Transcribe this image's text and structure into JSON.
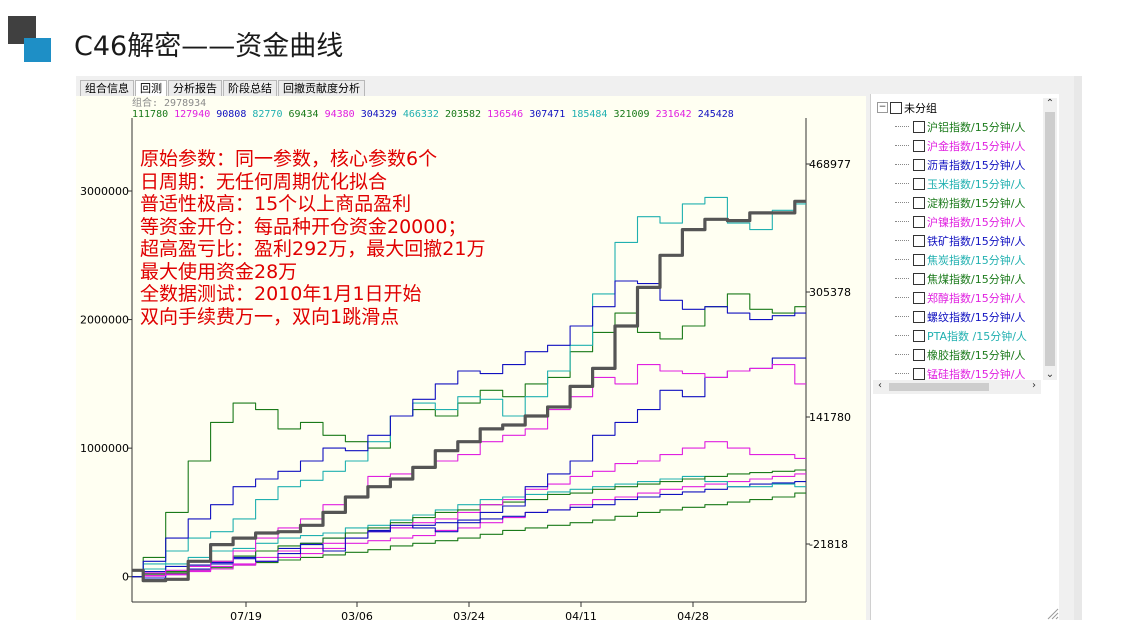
{
  "slide": {
    "title": "C46解密——资金曲线",
    "logo_colors": {
      "dark": "#404040",
      "accent": "#1e8fc6"
    }
  },
  "tabs": [
    {
      "label": "组合信息",
      "active": false
    },
    {
      "label": "回测",
      "active": true
    },
    {
      "label": "分析报告",
      "active": false
    },
    {
      "label": "阶段总结",
      "active": false
    },
    {
      "label": "回撤贡献度分析",
      "active": false
    }
  ],
  "legend": {
    "label": "组合: 2978934",
    "values": [
      {
        "text": "111780",
        "color": "#1a7a1a"
      },
      {
        "text": "127940",
        "color": "#e020e0"
      },
      {
        "text": "90808",
        "color": "#1010c0"
      },
      {
        "text": "82770",
        "color": "#20b0b0"
      },
      {
        "text": "69434",
        "color": "#1a7a1a"
      },
      {
        "text": "94380",
        "color": "#e020e0"
      },
      {
        "text": "304329",
        "color": "#1010c0"
      },
      {
        "text": "466332",
        "color": "#20b0b0"
      },
      {
        "text": "203582",
        "color": "#1a7a1a"
      },
      {
        "text": "136546",
        "color": "#e020e0"
      },
      {
        "text": "307471",
        "color": "#1010c0"
      },
      {
        "text": "185484",
        "color": "#20b0b0"
      },
      {
        "text": "321009",
        "color": "#1a7a1a"
      },
      {
        "text": "231642",
        "color": "#e020e0"
      },
      {
        "text": "245428",
        "color": "#1010c0"
      }
    ]
  },
  "annotation": [
    "原始参数：同一参数，核心参数6个",
    "日周期：无任何周期优化拟合",
    "普适性极高：15个以上商品盈利",
    "等资金开仓：每品种开仓资金20000；",
    "超高盈亏比：盈利292万，最大回撤21万",
    "最大使用资金28万",
    "全数据测试：2010年1月1日开始",
    "双向手续费万一，双向1跳滑点"
  ],
  "tree": {
    "root": "未分组",
    "items": [
      {
        "label": "沪铝指数/15分钟/人",
        "color": "#1a7a1a"
      },
      {
        "label": "沪金指数/15分钟/人",
        "color": "#e020e0"
      },
      {
        "label": "沥青指数/15分钟/人",
        "color": "#1010c0"
      },
      {
        "label": "玉米指数/15分钟/人",
        "color": "#20b0b0"
      },
      {
        "label": "淀粉指数/15分钟/人",
        "color": "#1a7a1a"
      },
      {
        "label": "沪镍指数/15分钟/人",
        "color": "#e020e0"
      },
      {
        "label": "铁矿指数/15分钟/人",
        "color": "#1010c0"
      },
      {
        "label": "焦炭指数/15分钟/人",
        "color": "#20b0b0"
      },
      {
        "label": "焦煤指数/15分钟/人",
        "color": "#1a7a1a"
      },
      {
        "label": "郑醇指数/15分钟/人",
        "color": "#e020e0"
      },
      {
        "label": "螺纹指数/15分钟/人",
        "color": "#1010c0"
      },
      {
        "label": "PTA指数 /15分钟/人",
        "color": "#20b0b0"
      },
      {
        "label": "橡胶指数/15分钟/人",
        "color": "#1a7a1a"
      },
      {
        "label": "锰硅指数/15分钟/人",
        "color": "#e020e0"
      }
    ]
  },
  "chart_data": {
    "type": "line",
    "left_axis": {
      "ticks": [
        "3000000",
        "2000000",
        "1000000",
        "0"
      ],
      "values": [
        3000000,
        2000000,
        1000000,
        0
      ],
      "range": [
        -150000,
        3350000
      ]
    },
    "right_axis": {
      "ticks": [
        "468977",
        "305378",
        "141780",
        "-21818"
      ]
    },
    "x_ticks": [
      "07/19",
      "03/06",
      "03/24",
      "04/11",
      "04/28"
    ],
    "series": [
      {
        "color": "#555555",
        "width": 3.2,
        "values": [
          50000,
          -30000,
          -20000,
          120000,
          250000,
          300000,
          340000,
          350000,
          400000,
          500000,
          620000,
          700000,
          760000,
          850000,
          980000,
          1050000,
          1150000,
          1180000,
          1250000,
          1320000,
          1480000,
          1620000,
          1950000,
          2250000,
          2500000,
          2700000,
          2780000,
          2770000,
          2830000,
          2830000,
          2920000
        ]
      },
      {
        "color": "#1010c0",
        "width": 1.1,
        "values": [
          0,
          120000,
          300000,
          450000,
          560000,
          700000,
          760000,
          820000,
          900000,
          1000000,
          980000,
          1100000,
          1250000,
          1380000,
          1500000,
          1600000,
          1580000,
          1650000,
          1750000,
          1800000,
          1950000,
          2100000,
          2300000,
          2280000,
          2150000,
          2080000,
          2100000,
          2050000,
          2000000,
          2030000,
          2050000
        ]
      },
      {
        "color": "#20b0b0",
        "width": 1.1,
        "values": [
          50000,
          100000,
          200000,
          300000,
          350000,
          450000,
          600000,
          700000,
          750000,
          820000,
          900000,
          1050000,
          1250000,
          1350000,
          1300000,
          1400000,
          1380000,
          1250000,
          1400000,
          1600000,
          1800000,
          2200000,
          2600000,
          2800000,
          2750000,
          2900000,
          2950000,
          2750000,
          2700000,
          2850000,
          2900000
        ]
      },
      {
        "color": "#1a7a1a",
        "width": 1.1,
        "values": [
          0,
          150000,
          500000,
          900000,
          1200000,
          1350000,
          1300000,
          1150000,
          1200000,
          1100000,
          1050000,
          1000000,
          1250000,
          1300000,
          1250000,
          1350000,
          1450000,
          1400000,
          1500000,
          1550000,
          1750000,
          1900000,
          2050000,
          1900000,
          1850000,
          1950000,
          2100000,
          2200000,
          2080000,
          2050000,
          2100000
        ]
      },
      {
        "color": "#e020e0",
        "width": 1.1,
        "values": [
          0,
          30000,
          50000,
          80000,
          120000,
          200000,
          300000,
          380000,
          450000,
          560000,
          620000,
          780000,
          800000,
          850000,
          900000,
          950000,
          1050000,
          1100000,
          1150000,
          1300000,
          1400000,
          1550000,
          1500000,
          1650000,
          1600000,
          1580000,
          1550000,
          1600000,
          1620000,
          1650000,
          1500000
        ]
      },
      {
        "color": "#1010c0",
        "width": 1.1,
        "values": [
          0,
          40000,
          80000,
          90000,
          110000,
          150000,
          120000,
          180000,
          250000,
          200000,
          300000,
          350000,
          400000,
          380000,
          350000,
          420000,
          500000,
          550000,
          700000,
          800000,
          900000,
          1100000,
          1200000,
          1300000,
          1450000,
          1400000,
          1550000,
          1600000,
          1620000,
          1700000,
          1700000
        ]
      },
      {
        "color": "#e020e0",
        "width": 1.1,
        "values": [
          0,
          10000,
          20000,
          50000,
          80000,
          100000,
          150000,
          200000,
          220000,
          260000,
          300000,
          350000,
          380000,
          420000,
          450000,
          500000,
          560000,
          600000,
          680000,
          720000,
          780000,
          820000,
          880000,
          900000,
          950000,
          1000000,
          1050000,
          1000000,
          950000,
          950000,
          920000
        ]
      },
      {
        "color": "#1a7a1a",
        "width": 1.1,
        "values": [
          0,
          20000,
          40000,
          80000,
          120000,
          160000,
          200000,
          240000,
          260000,
          300000,
          340000,
          380000,
          420000,
          460000,
          500000,
          520000,
          560000,
          580000,
          600000,
          640000,
          650000,
          680000,
          700000,
          720000,
          740000,
          760000,
          780000,
          800000,
          810000,
          820000,
          830000
        ]
      },
      {
        "color": "#20b0b0",
        "width": 1.1,
        "values": [
          0,
          60000,
          100000,
          150000,
          200000,
          220000,
          260000,
          300000,
          320000,
          340000,
          380000,
          400000,
          440000,
          480000,
          520000,
          560000,
          600000,
          620000,
          640000,
          660000,
          680000,
          700000,
          720000,
          740000,
          760000,
          780000,
          740000,
          700000,
          700000,
          720000,
          700000
        ]
      },
      {
        "color": "#1010c0",
        "width": 1.1,
        "values": [
          0,
          -10000,
          20000,
          60000,
          100000,
          140000,
          200000,
          220000,
          260000,
          300000,
          340000,
          360000,
          380000,
          400000,
          420000,
          440000,
          450000,
          470000,
          500000,
          520000,
          540000,
          560000,
          600000,
          620000,
          640000,
          660000,
          680000,
          700000,
          720000,
          730000,
          740000
        ]
      },
      {
        "color": "#e020e0",
        "width": 1.1,
        "values": [
          0,
          5000,
          15000,
          40000,
          60000,
          90000,
          120000,
          150000,
          180000,
          220000,
          260000,
          280000,
          300000,
          320000,
          360000,
          380000,
          420000,
          460000,
          500000,
          520000,
          560000,
          600000,
          620000,
          650000,
          680000,
          700000,
          720000,
          740000,
          760000,
          780000,
          800000
        ]
      },
      {
        "color": "#1a7a1a",
        "width": 1.1,
        "values": [
          0,
          10000,
          30000,
          50000,
          70000,
          90000,
          110000,
          130000,
          150000,
          170000,
          190000,
          210000,
          240000,
          260000,
          280000,
          300000,
          330000,
          360000,
          380000,
          400000,
          420000,
          440000,
          470000,
          500000,
          520000,
          540000,
          560000,
          580000,
          600000,
          620000,
          650000
        ]
      }
    ]
  }
}
